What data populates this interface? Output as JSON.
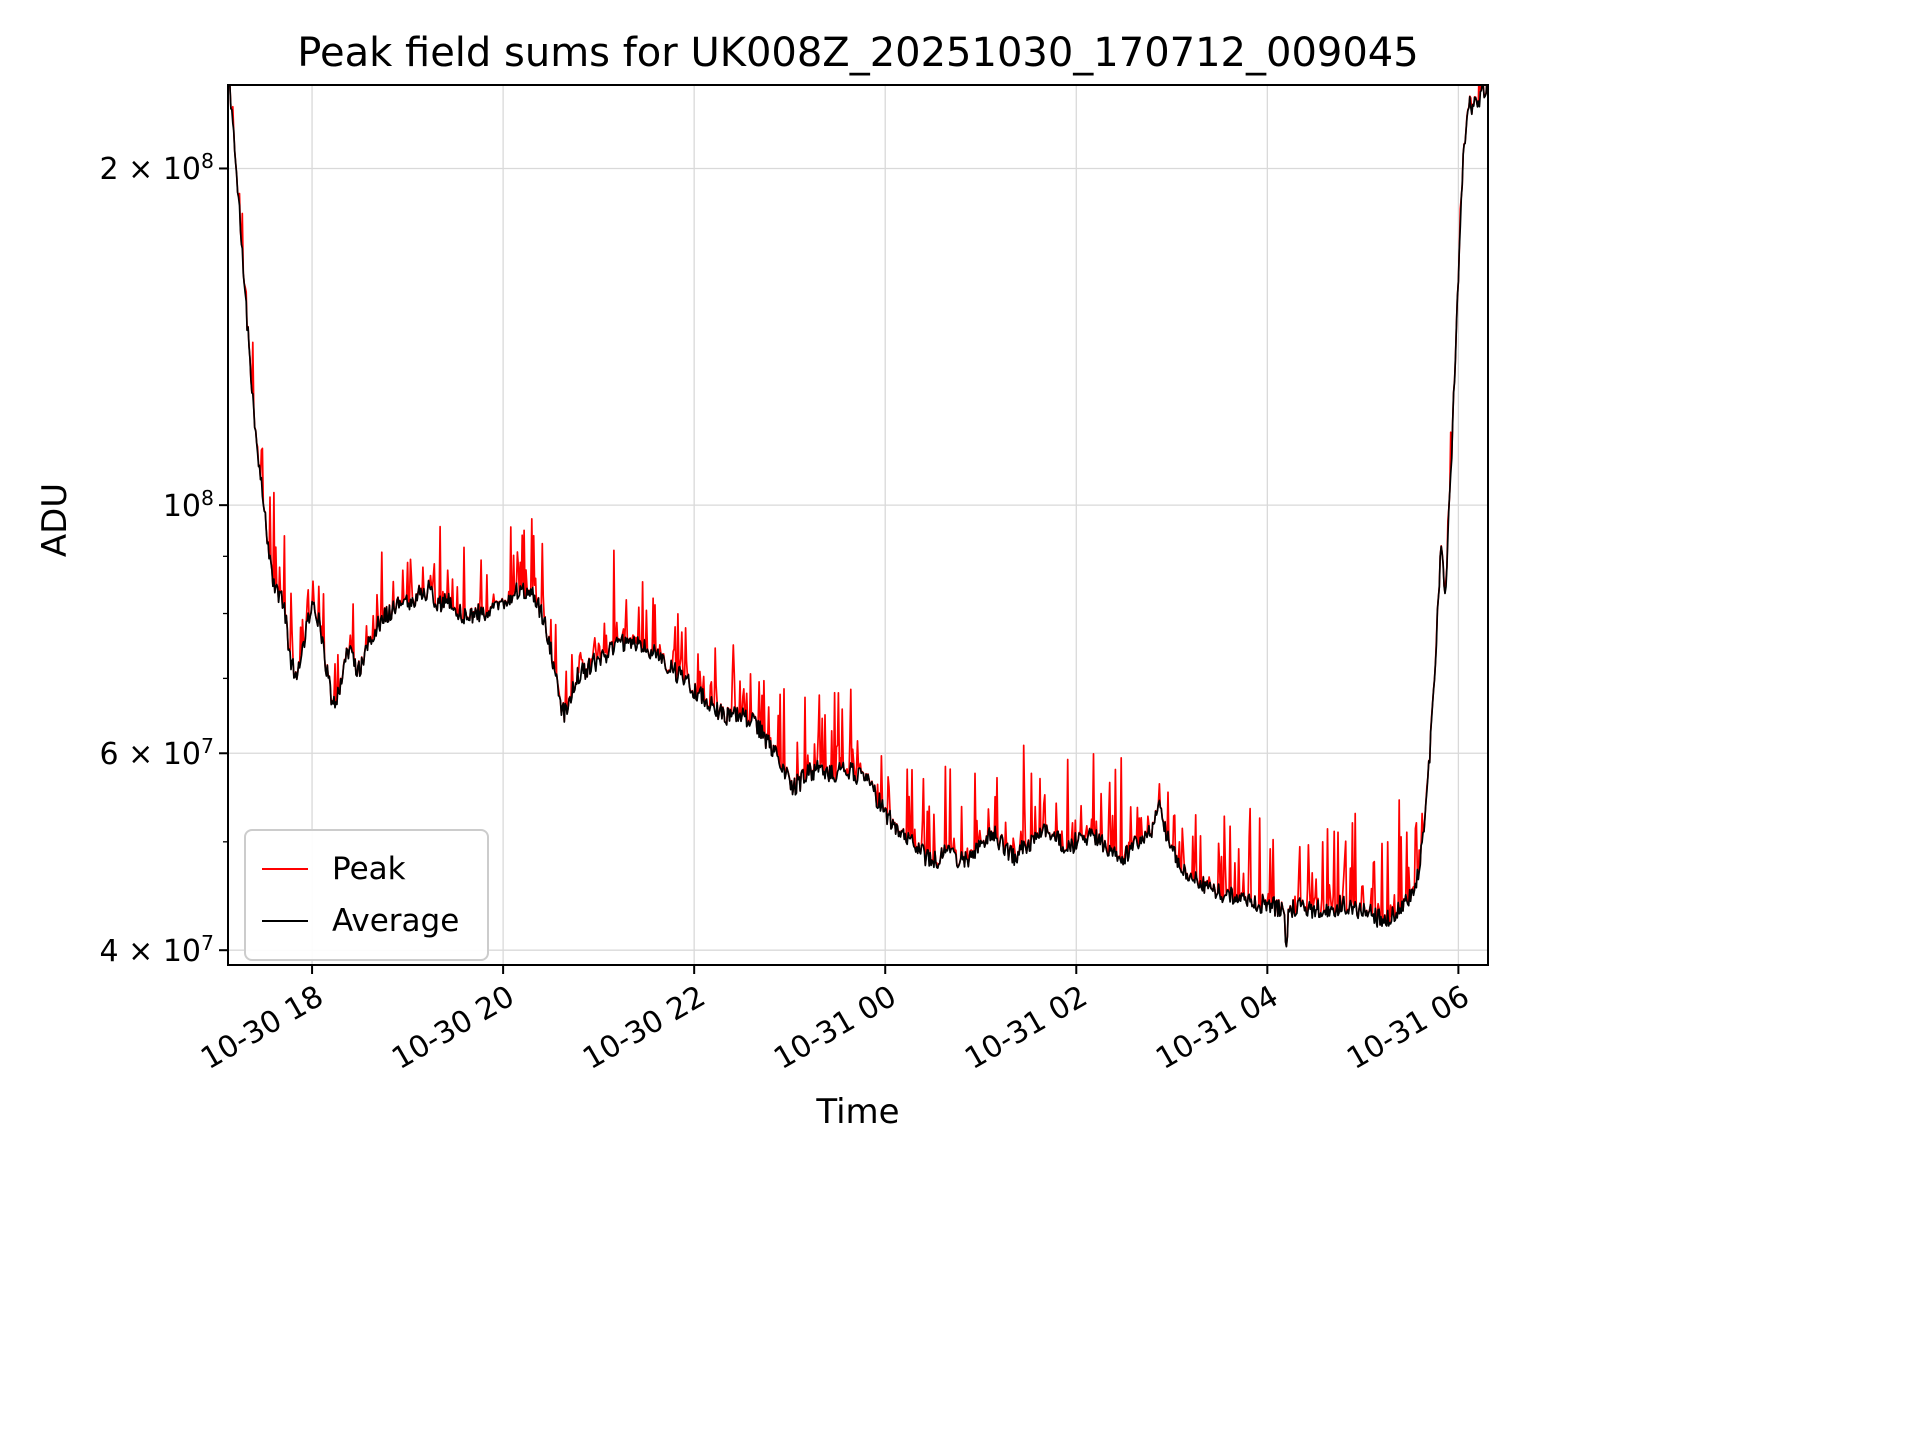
{
  "chart_data": {
    "type": "line",
    "title": "Peak field sums for UK008Z_20251030_170712_009045",
    "xlabel": "Time",
    "ylabel": "ADU",
    "y_scale": "log",
    "grid": true,
    "legend_position": "lower left",
    "x_unit_hours_origin": "10-30 00:00",
    "xlim": [
      17.12,
      30.31
    ],
    "ylim": [
      38800000.0,
      237500000.0
    ],
    "x_ticks": [
      {
        "t": 18,
        "label": "10-30 18"
      },
      {
        "t": 20,
        "label": "10-30 20"
      },
      {
        "t": 22,
        "label": "10-30 22"
      },
      {
        "t": 24,
        "label": "10-31 00"
      },
      {
        "t": 26,
        "label": "10-31 02"
      },
      {
        "t": 28,
        "label": "10-31 04"
      },
      {
        "t": 30,
        "label": "10-31 06"
      }
    ],
    "y_ticks": [
      {
        "v": 40000000.0,
        "mantissa": "4 × 10",
        "exp": "7"
      },
      {
        "v": 60000000.0,
        "mantissa": "6 × 10",
        "exp": "7"
      },
      {
        "v": 100000000.0,
        "mantissa": "10",
        "exp": "8"
      },
      {
        "v": 200000000.0,
        "mantissa": "2 × 10",
        "exp": "8"
      }
    ],
    "y_minor_ticks": [
      50000000.0,
      70000000.0,
      80000000.0,
      90000000.0
    ],
    "legend": [
      {
        "label": "Peak",
        "color": "#ff0000"
      },
      {
        "label": "Average",
        "color": "#000000"
      }
    ],
    "series": {
      "average_anchors": [
        [
          17.12,
          242000000.0
        ],
        [
          17.15,
          230000000.0
        ],
        [
          17.19,
          210000000.0
        ],
        [
          17.23,
          188000000.0
        ],
        [
          17.27,
          168000000.0
        ],
        [
          17.31,
          150000000.0
        ],
        [
          17.35,
          135000000.0
        ],
        [
          17.39,
          122000000.0
        ],
        [
          17.43,
          112000000.0
        ],
        [
          17.47,
          104000000.0
        ],
        [
          17.51,
          97000000.0
        ],
        [
          17.55,
          91000000.0
        ],
        [
          17.59,
          86000000.0
        ],
        [
          17.63,
          83500000.0
        ],
        [
          17.68,
          83000000.0
        ],
        [
          17.72,
          80000000.0
        ],
        [
          17.77,
          73000000.0
        ],
        [
          17.82,
          70500000.0
        ],
        [
          17.87,
          72000000.0
        ],
        [
          17.93,
          77000000.0
        ],
        [
          17.98,
          80500000.0
        ],
        [
          18.02,
          81000000.0
        ],
        [
          18.06,
          79500000.0
        ],
        [
          18.1,
          76000000.0
        ],
        [
          18.15,
          71500000.0
        ],
        [
          18.2,
          67500000.0
        ],
        [
          18.24,
          66000000.0
        ],
        [
          18.28,
          68000000.0
        ],
        [
          18.33,
          72000000.0
        ],
        [
          18.38,
          74000000.0
        ],
        [
          18.43,
          73000000.0
        ],
        [
          18.48,
          71000000.0
        ],
        [
          18.53,
          72000000.0
        ],
        [
          18.59,
          75000000.0
        ],
        [
          18.66,
          77500000.0
        ],
        [
          18.74,
          79500000.0
        ],
        [
          18.82,
          80500000.0
        ],
        [
          18.9,
          81500000.0
        ],
        [
          18.98,
          82000000.0
        ],
        [
          19.06,
          82500000.0
        ],
        [
          19.14,
          83500000.0
        ],
        [
          19.22,
          84000000.0
        ],
        [
          19.28,
          82500000.0
        ],
        [
          19.34,
          81500000.0
        ],
        [
          19.42,
          82000000.0
        ],
        [
          19.5,
          81000000.0
        ],
        [
          19.58,
          80000000.0
        ],
        [
          19.66,
          79500000.0
        ],
        [
          19.74,
          80000000.0
        ],
        [
          19.82,
          80500000.0
        ],
        [
          19.9,
          81000000.0
        ],
        [
          19.98,
          81500000.0
        ],
        [
          20.06,
          82500000.0
        ],
        [
          20.14,
          83500000.0
        ],
        [
          20.22,
          84000000.0
        ],
        [
          20.3,
          83000000.0
        ],
        [
          20.38,
          81000000.0
        ],
        [
          20.46,
          77000000.0
        ],
        [
          20.54,
          71000000.0
        ],
        [
          20.6,
          66000000.0
        ],
        [
          20.64,
          65000000.0
        ],
        [
          20.7,
          67500000.0
        ],
        [
          20.76,
          70000000.0
        ],
        [
          20.84,
          71000000.0
        ],
        [
          20.92,
          72000000.0
        ],
        [
          21.02,
          73000000.0
        ],
        [
          21.12,
          74000000.0
        ],
        [
          21.22,
          75000000.0
        ],
        [
          21.32,
          75500000.0
        ],
        [
          21.44,
          75000000.0
        ],
        [
          21.56,
          74000000.0
        ],
        [
          21.68,
          72500000.0
        ],
        [
          21.8,
          71000000.0
        ],
        [
          21.92,
          69500000.0
        ],
        [
          22.04,
          68000000.0
        ],
        [
          22.14,
          66500000.0
        ],
        [
          22.24,
          65500000.0
        ],
        [
          22.36,
          64500000.0
        ],
        [
          22.46,
          65000000.0
        ],
        [
          22.56,
          64500000.0
        ],
        [
          22.66,
          63500000.0
        ],
        [
          22.74,
          62000000.0
        ],
        [
          22.82,
          60500000.0
        ],
        [
          22.9,
          59000000.0
        ],
        [
          22.98,
          57000000.0
        ],
        [
          23.04,
          56000000.0
        ],
        [
          23.1,
          56500000.0
        ],
        [
          23.18,
          57500000.0
        ],
        [
          23.28,
          58000000.0
        ],
        [
          23.38,
          57500000.0
        ],
        [
          23.48,
          57500000.0
        ],
        [
          23.58,
          58000000.0
        ],
        [
          23.68,
          57500000.0
        ],
        [
          23.78,
          57000000.0
        ],
        [
          23.86,
          56000000.0
        ],
        [
          23.92,
          54500000.0
        ],
        [
          23.98,
          53500000.0
        ],
        [
          24.04,
          52500000.0
        ],
        [
          24.1,
          51500000.0
        ],
        [
          24.18,
          51000000.0
        ],
        [
          24.26,
          50500000.0
        ],
        [
          24.34,
          49500000.0
        ],
        [
          24.42,
          48500000.0
        ],
        [
          24.5,
          48000000.0
        ],
        [
          24.58,
          48500000.0
        ],
        [
          24.66,
          49000000.0
        ],
        [
          24.74,
          48500000.0
        ],
        [
          24.82,
          48000000.0
        ],
        [
          24.9,
          48500000.0
        ],
        [
          24.98,
          49500000.0
        ],
        [
          25.06,
          50500000.0
        ],
        [
          25.12,
          51000000.0
        ],
        [
          25.2,
          50000000.0
        ],
        [
          25.28,
          49000000.0
        ],
        [
          25.36,
          48500000.0
        ],
        [
          25.44,
          49500000.0
        ],
        [
          25.52,
          50000000.0
        ],
        [
          25.6,
          50500000.0
        ],
        [
          25.68,
          51000000.0
        ],
        [
          25.76,
          50500000.0
        ],
        [
          25.84,
          50000000.0
        ],
        [
          25.92,
          49500000.0
        ],
        [
          26.0,
          50000000.0
        ],
        [
          26.08,
          50500000.0
        ],
        [
          26.16,
          51000000.0
        ],
        [
          26.24,
          50000000.0
        ],
        [
          26.32,
          49500000.0
        ],
        [
          26.4,
          48500000.0
        ],
        [
          26.48,
          48000000.0
        ],
        [
          26.56,
          49000000.0
        ],
        [
          26.64,
          50000000.0
        ],
        [
          26.72,
          50500000.0
        ],
        [
          26.8,
          51500000.0
        ],
        [
          26.86,
          54000000.0
        ],
        [
          26.92,
          51500000.0
        ],
        [
          26.98,
          49500000.0
        ],
        [
          27.06,
          48000000.0
        ],
        [
          27.16,
          47000000.0
        ],
        [
          27.28,
          46000000.0
        ],
        [
          27.4,
          45500000.0
        ],
        [
          27.54,
          45000000.0
        ],
        [
          27.68,
          44500000.0
        ],
        [
          27.84,
          44000000.0
        ],
        [
          28.0,
          44000000.0
        ],
        [
          28.16,
          43500000.0
        ],
        [
          28.18,
          43000000.0
        ],
        [
          28.2,
          39800000.0
        ],
        [
          28.22,
          43000000.0
        ],
        [
          28.32,
          44000000.0
        ],
        [
          28.48,
          43500000.0
        ],
        [
          28.64,
          43500000.0
        ],
        [
          28.8,
          44000000.0
        ],
        [
          28.96,
          43500000.0
        ],
        [
          29.1,
          43000000.0
        ],
        [
          29.22,
          42500000.0
        ],
        [
          29.32,
          43000000.0
        ],
        [
          29.4,
          43500000.0
        ],
        [
          29.48,
          44500000.0
        ],
        [
          29.54,
          45500000.0
        ],
        [
          29.6,
          48000000.0
        ],
        [
          29.65,
          53000000.0
        ],
        [
          29.7,
          60000000.0
        ],
        [
          29.74,
          68000000.0
        ],
        [
          29.77,
          76000000.0
        ],
        [
          29.8,
          86000000.0
        ],
        [
          29.82,
          93000000.0
        ],
        [
          29.84,
          87000000.0
        ],
        [
          29.86,
          83000000.0
        ],
        [
          29.88,
          89000000.0
        ],
        [
          29.9,
          98000000.0
        ],
        [
          29.93,
          112000000.0
        ],
        [
          29.96,
          130000000.0
        ],
        [
          29.99,
          152000000.0
        ],
        [
          30.02,
          178000000.0
        ],
        [
          30.05,
          202000000.0
        ],
        [
          30.08,
          220000000.0
        ],
        [
          30.11,
          230000000.0
        ],
        [
          30.14,
          224000000.0
        ],
        [
          30.17,
          232000000.0
        ],
        [
          30.2,
          227000000.0
        ],
        [
          30.24,
          236000000.0
        ],
        [
          30.28,
          230000000.0
        ],
        [
          30.31,
          242000000.0
        ]
      ],
      "peak_spikes": [
        [
          17.62,
          89000000.0
        ],
        [
          17.66,
          88000000.0
        ],
        [
          17.9,
          79000000.0
        ],
        [
          17.96,
          84000000.0
        ],
        [
          18.01,
          85500000.0
        ],
        [
          18.27,
          73500000.0
        ],
        [
          18.57,
          78000000.0
        ],
        [
          18.95,
          85000000.0
        ],
        [
          19.04,
          86000000.0
        ],
        [
          19.16,
          88000000.0
        ],
        [
          19.24,
          86500000.0
        ],
        [
          19.52,
          84500000.0
        ],
        [
          19.76,
          83000000.0
        ],
        [
          20.08,
          86000000.0
        ],
        [
          20.16,
          88000000.0
        ],
        [
          20.24,
          87500000.0
        ],
        [
          20.34,
          86000000.0
        ],
        [
          20.42,
          83000000.0
        ],
        [
          20.5,
          79000000.0
        ],
        [
          20.72,
          73500000.0
        ],
        [
          20.95,
          75000000.0
        ],
        [
          21.08,
          76500000.0
        ],
        [
          21.26,
          77500000.0
        ],
        [
          21.5,
          76000000.0
        ],
        [
          21.64,
          75000000.0
        ],
        [
          21.78,
          74000000.0
        ],
        [
          21.92,
          72500000.0
        ],
        [
          22.06,
          71000000.0
        ],
        [
          22.18,
          69500000.0
        ],
        [
          22.42,
          70500000.0
        ],
        [
          22.52,
          68500000.0
        ],
        [
          22.78,
          66000000.0
        ],
        [
          22.94,
          68500000.0
        ],
        [
          23.16,
          64000000.0
        ],
        [
          23.3,
          63000000.0
        ],
        [
          23.5,
          61000000.0
        ],
        [
          23.66,
          60500000.0
        ],
        [
          24.04,
          56000000.0
        ],
        [
          24.28,
          58000000.0
        ],
        [
          24.68,
          52000000.0
        ],
        [
          25.08,
          53500000.0
        ],
        [
          25.62,
          53000000.0
        ],
        [
          25.96,
          52000000.0
        ],
        [
          26.34,
          53000000.0
        ],
        [
          26.66,
          52500000.0
        ],
        [
          27.08,
          50000000.0
        ],
        [
          27.52,
          48500000.0
        ],
        [
          27.92,
          52500000.0
        ],
        [
          28.34,
          49500000.0
        ],
        [
          28.58,
          50000000.0
        ],
        [
          28.74,
          51000000.0
        ],
        [
          28.92,
          53000000.0
        ],
        [
          29.12,
          48000000.0
        ],
        [
          29.26,
          50000000.0
        ],
        [
          29.38,
          54500000.0
        ],
        [
          29.46,
          51000000.0
        ],
        [
          29.56,
          52000000.0
        ],
        [
          29.62,
          53000000.0
        ]
      ]
    },
    "noise": {
      "seed": 11,
      "amplitude": 0.02,
      "step_hours": 0.01,
      "peak_prob": 0.22,
      "peak_scale": 0.28
    }
  }
}
